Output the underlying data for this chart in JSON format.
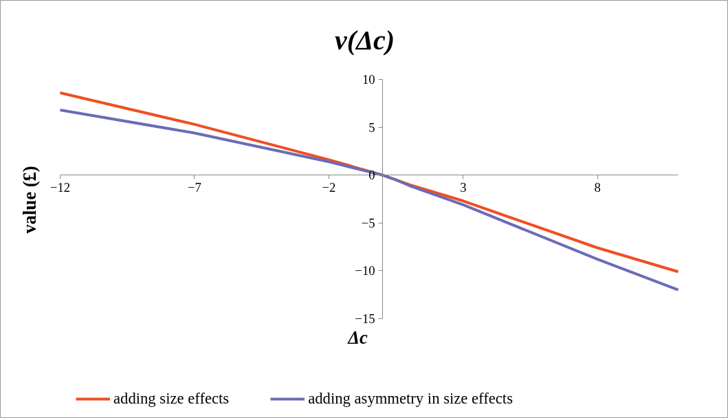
{
  "chart_data": {
    "type": "line",
    "title": "v(Δc)",
    "xlabel": "Δc",
    "ylabel": "value (£)",
    "x": [
      -12,
      -7,
      -2,
      -1,
      -0.5,
      0,
      0.5,
      1,
      3,
      8,
      11
    ],
    "series": [
      {
        "name": "adding size effects",
        "color": "#f04e23",
        "values": [
          8.6,
          5.3,
          1.6,
          0.8,
          0.4,
          0,
          -0.5,
          -1.0,
          -2.7,
          -7.6,
          -10.1
        ]
      },
      {
        "name": "adding asymmetry in size effects",
        "color": "#6b6bb8",
        "values": [
          6.8,
          4.4,
          1.4,
          0.7,
          0.35,
          0,
          -0.5,
          -1.1,
          -3.1,
          -8.8,
          -12.0
        ]
      }
    ],
    "xlim": [
      -12,
      11
    ],
    "ylim": [
      -15,
      10
    ],
    "xticks": [
      -12,
      -7,
      -2,
      3,
      8
    ],
    "yticks": [
      -15,
      -10,
      -5,
      0,
      5,
      10
    ],
    "grid": false,
    "legend": "bottom",
    "marker": "none",
    "line_style": "solid"
  }
}
